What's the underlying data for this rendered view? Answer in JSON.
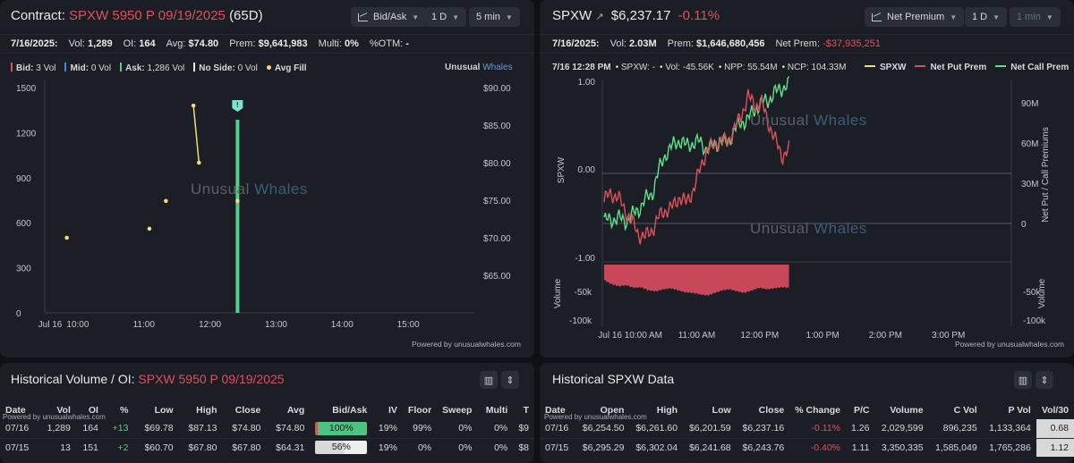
{
  "left_chart": {
    "title_prefix": "Contract:",
    "contract": "SPXW 5950 P 09/19/2025",
    "dte": "(65D)",
    "controls": {
      "mode": "Bid/Ask",
      "range": "1 D",
      "interval": "5 min"
    },
    "stats": {
      "date": "7/16/2025:",
      "vol_label": "Vol:",
      "vol": "1,289",
      "oi_label": "OI:",
      "oi": "164",
      "avg_label": "Avg:",
      "avg": "$74.80",
      "prem_label": "Prem:",
      "prem": "$9,641,983",
      "multi_label": "Multi:",
      "multi": "0%",
      "otm_label": "%OTM:",
      "otm": "-"
    },
    "legend": [
      {
        "label": "Bid:",
        "value": "3 Vol",
        "color": "#e0505c"
      },
      {
        "label": "Mid:",
        "value": "0 Vol",
        "color": "#4f7de0"
      },
      {
        "label": "Ask:",
        "value": "1,286 Vol",
        "color": "#4fd18b"
      },
      {
        "label": "No Side:",
        "value": "0 Vol",
        "color": "#e8eaed"
      }
    ],
    "legend_avg_fill": "Avg Fill",
    "brand": {
      "a": "Unusual",
      "b": "Whales"
    },
    "watermark": {
      "a": "Unusual",
      "b": "Whales"
    },
    "marker_label": "!",
    "powered": "Powered by unusualwhales.com",
    "chart_data": {
      "type": "bar",
      "x_ticks": [
        "Jul 16",
        "10:00",
        "11:00",
        "12:00",
        "13:00",
        "14:00",
        "15:00"
      ],
      "y_left_ticks": [
        "1500",
        "1200",
        "900",
        "600",
        "300",
        "0"
      ],
      "y_right_ticks": [
        "$90.00",
        "$85.00",
        "$80.00",
        "$75.00",
        "$70.00",
        "$65.00"
      ],
      "ylim_volume": [
        0,
        1500
      ],
      "ylim_price": [
        60,
        90
      ],
      "volume_bars": [
        {
          "time": "12:25",
          "value": 1286,
          "color": "#4fd18b"
        }
      ],
      "avg_fill_points": [
        {
          "time": "09:50",
          "price": 70.0
        },
        {
          "time": "11:05",
          "price": 71.2
        },
        {
          "time": "11:20",
          "price": 74.9
        },
        {
          "time": "11:45",
          "price": 87.6
        },
        {
          "time": "11:50",
          "price": 80.0
        },
        {
          "time": "12:25",
          "price": 74.9
        }
      ],
      "avg_fill_line_segment": [
        {
          "time": "11:45",
          "price": 87.6
        },
        {
          "time": "11:50",
          "price": 80.0
        }
      ]
    }
  },
  "right_chart": {
    "symbol": "SPXW",
    "price": "$6,237.17",
    "change": "-0.11%",
    "controls": {
      "mode": "Net Premium",
      "range": "1 D",
      "interval": "1 min"
    },
    "stats": {
      "date": "7/16/2025:",
      "vol_label": "Vol:",
      "vol": "2.03M",
      "prem_label": "Prem:",
      "prem": "$1,646,680,456",
      "netprem_label": "Net Prem:",
      "netprem": "-$37,935,251"
    },
    "info": {
      "time": "7/16 12:28 PM",
      "spxw": "• SPXW: -",
      "vol": "• Vol: -45.56K",
      "npp": "• NPP: 55.54M",
      "ncp": "• NCP: 104.33M"
    },
    "legend": [
      {
        "label": "SPXW",
        "color": "#f5d77c"
      },
      {
        "label": "Net Put Prem",
        "color": "#e0505c"
      },
      {
        "label": "Net Call Prem",
        "color": "#5fe08a"
      }
    ],
    "watermark": {
      "a": "Unusual",
      "b": "Whales"
    },
    "axis_left_label": "SPXW",
    "axis_right_label": "Net Put / Call Premiums",
    "volume_label": "Volume",
    "powered": "Powered by unusualwhales.com",
    "chart_data": {
      "type": "line",
      "x_ticks": [
        "Jul 16 10:00 AM",
        "11:00 AM",
        "12:00 PM",
        "1:00 PM",
        "2:00 PM",
        "3:00 PM"
      ],
      "y_left_ticks": [
        "1.00",
        "0.00",
        "-1.00"
      ],
      "y_right_ticks": [
        "90M",
        "60M",
        "30M",
        "0"
      ],
      "vol_ticks": [
        "-50k",
        "-100k"
      ],
      "series": [
        {
          "name": "Net Call Prem",
          "color": "#5fe08a",
          "values": [
            3,
            2,
            5,
            1,
            6,
            10,
            18,
            22,
            40,
            52,
            58,
            62,
            58,
            60,
            61,
            55,
            58,
            62,
            60,
            70,
            75,
            78,
            85,
            90,
            92,
            98,
            101,
            104
          ]
        },
        {
          "name": "Net Put Prem",
          "color": "#e0505c",
          "values": [
            18,
            22,
            20,
            10,
            2,
            -8,
            -10,
            -5,
            5,
            10,
            12,
            20,
            15,
            25,
            40,
            55,
            58,
            62,
            60,
            70,
            80,
            95,
            88,
            90,
            75,
            62,
            50,
            55
          ]
        },
        {
          "name": "SPXW",
          "color": "#f5d77c",
          "values": []
        }
      ],
      "volume": [
        -30,
        -38,
        -42,
        -40,
        -45,
        -44,
        -50,
        -52,
        -48,
        -46,
        -50,
        -54,
        -55,
        -58,
        -60,
        -55,
        -50,
        -48,
        -52,
        -55,
        -50,
        -45,
        -48,
        -46,
        -44,
        -45
      ]
    }
  },
  "hist_opt": {
    "title_prefix": "Historical Volume / OI:",
    "contract": "SPXW 5950 P 09/19/2025",
    "powered": "Powered by unusualwhales.com",
    "columns": [
      "Date",
      "Vol",
      "OI",
      "%",
      "Low",
      "High",
      "Close",
      "Avg",
      "Bid/Ask",
      "IV",
      "Floor",
      "Sweep",
      "Multi",
      "T"
    ],
    "rows": [
      {
        "date": "07/16",
        "vol": "1,289",
        "oi": "164",
        "pct": "+13",
        "low": "$69.78",
        "high": "$87.13",
        "close": "$74.80",
        "avg": "$74.80",
        "bidask": "100%",
        "bidask_frac": 1.0,
        "iv": "19%",
        "floor": "99%",
        "sweep": "0%",
        "multi": "0%",
        "t": "$9"
      },
      {
        "date": "07/15",
        "vol": "13",
        "oi": "151",
        "pct": "+2",
        "low": "$60.70",
        "high": "$67.80",
        "close": "$67.80",
        "avg": "$64.31",
        "bidask": "56%",
        "bidask_frac": 0.56,
        "iv": "19%",
        "floor": "0%",
        "sweep": "0%",
        "multi": "0%",
        "t": "$8"
      }
    ]
  },
  "hist_spx": {
    "title": "Historical SPXW Data",
    "powered": "Powered by unusualwhales.com",
    "columns": [
      "Date",
      "Open",
      "High",
      "Low",
      "Close",
      "% Change",
      "P/C",
      "Volume",
      "C Vol",
      "P Vol",
      "Vol/30"
    ],
    "rows": [
      {
        "date": "07/16",
        "open": "$6,254.50",
        "high": "$6,261.60",
        "low": "$6,201.59",
        "close": "$6,237.16",
        "chg": "-0.11%",
        "pc": "1.26",
        "volume": "2,029,599",
        "cvol": "896,235",
        "pvol": "1,133,364",
        "v30": "0.68"
      },
      {
        "date": "07/15",
        "open": "$6,295.29",
        "high": "$6,302.04",
        "low": "$6,241.68",
        "close": "$6,243.76",
        "chg": "-0.40%",
        "pc": "1.11",
        "volume": "3,350,335",
        "cvol": "1,585,049",
        "pvol": "1,765,286",
        "v30": "1.12"
      }
    ]
  }
}
